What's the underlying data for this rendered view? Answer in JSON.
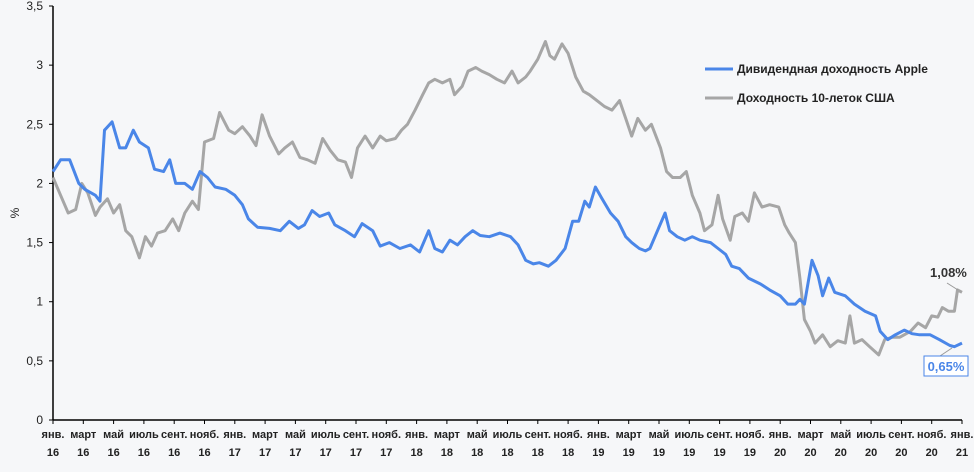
{
  "chart_data": {
    "type": "line",
    "title": "",
    "xlabel": "",
    "ylabel": "%",
    "ylim": [
      0,
      3.5
    ],
    "yticks": [
      "0",
      "0,5",
      "1",
      "1,5",
      "2",
      "2,5",
      "3",
      "3,5"
    ],
    "ytick_values": [
      0,
      0.5,
      1,
      1.5,
      2,
      2.5,
      3,
      3.5
    ],
    "x_unit": "months since Jan 2016",
    "xlim": [
      0,
      60
    ],
    "xticks": [
      {
        "m": 0,
        "l1": "янв.",
        "l2": "16"
      },
      {
        "m": 2,
        "l1": "март",
        "l2": "16"
      },
      {
        "m": 4,
        "l1": "май",
        "l2": "16"
      },
      {
        "m": 6,
        "l1": "июль",
        "l2": "16"
      },
      {
        "m": 8,
        "l1": "сент.",
        "l2": "16"
      },
      {
        "m": 10,
        "l1": "нояб.",
        "l2": "16"
      },
      {
        "m": 12,
        "l1": "янв.",
        "l2": "17"
      },
      {
        "m": 14,
        "l1": "март",
        "l2": "17"
      },
      {
        "m": 16,
        "l1": "май",
        "l2": "17"
      },
      {
        "m": 18,
        "l1": "июль",
        "l2": "17"
      },
      {
        "m": 20,
        "l1": "сент.",
        "l2": "17"
      },
      {
        "m": 22,
        "l1": "нояб.",
        "l2": "17"
      },
      {
        "m": 24,
        "l1": "янв.",
        "l2": "18"
      },
      {
        "m": 26,
        "l1": "март",
        "l2": "18"
      },
      {
        "m": 28,
        "l1": "май",
        "l2": "18"
      },
      {
        "m": 30,
        "l1": "июль",
        "l2": "18"
      },
      {
        "m": 32,
        "l1": "сент.",
        "l2": "18"
      },
      {
        "m": 34,
        "l1": "нояб.",
        "l2": "18"
      },
      {
        "m": 36,
        "l1": "янв.",
        "l2": "19"
      },
      {
        "m": 38,
        "l1": "март",
        "l2": "19"
      },
      {
        "m": 40,
        "l1": "май",
        "l2": "19"
      },
      {
        "m": 42,
        "l1": "июль",
        "l2": "19"
      },
      {
        "m": 44,
        "l1": "сент.",
        "l2": "19"
      },
      {
        "m": 46,
        "l1": "нояб.",
        "l2": "19"
      },
      {
        "m": 48,
        "l1": "янв.",
        "l2": "20"
      },
      {
        "m": 50,
        "l1": "март",
        "l2": "20"
      },
      {
        "m": 52,
        "l1": "май",
        "l2": "20"
      },
      {
        "m": 54,
        "l1": "июль",
        "l2": "20"
      },
      {
        "m": 56,
        "l1": "сент.",
        "l2": "20"
      },
      {
        "m": 58,
        "l1": "нояб.",
        "l2": "20"
      },
      {
        "m": 60,
        "l1": "янв.",
        "l2": "21"
      }
    ],
    "legend_position": "top-right",
    "grid": false,
    "series": [
      {
        "name": "Дивидендная доходность Apple",
        "color": "#4a86e8",
        "end_label": "0,65%",
        "points": [
          [
            0,
            2.1
          ],
          [
            0.5,
            2.2
          ],
          [
            1.1,
            2.2
          ],
          [
            1.7,
            2.0
          ],
          [
            2.1,
            1.95
          ],
          [
            2.8,
            1.9
          ],
          [
            3.1,
            1.85
          ],
          [
            3.4,
            2.45
          ],
          [
            3.9,
            2.52
          ],
          [
            4.4,
            2.3
          ],
          [
            4.8,
            2.3
          ],
          [
            5.3,
            2.45
          ],
          [
            5.7,
            2.35
          ],
          [
            6.3,
            2.3
          ],
          [
            6.7,
            2.12
          ],
          [
            7.3,
            2.1
          ],
          [
            7.7,
            2.2
          ],
          [
            8.1,
            2.0
          ],
          [
            8.7,
            2.0
          ],
          [
            9.2,
            1.95
          ],
          [
            9.7,
            2.1
          ],
          [
            10.2,
            2.05
          ],
          [
            10.7,
            1.97
          ],
          [
            11.4,
            1.95
          ],
          [
            12.0,
            1.9
          ],
          [
            12.5,
            1.82
          ],
          [
            12.9,
            1.7
          ],
          [
            13.5,
            1.63
          ],
          [
            14.3,
            1.62
          ],
          [
            15.0,
            1.6
          ],
          [
            15.6,
            1.68
          ],
          [
            16.2,
            1.62
          ],
          [
            16.6,
            1.65
          ],
          [
            17.1,
            1.77
          ],
          [
            17.6,
            1.72
          ],
          [
            18.2,
            1.75
          ],
          [
            18.6,
            1.65
          ],
          [
            19.3,
            1.6
          ],
          [
            19.9,
            1.55
          ],
          [
            20.4,
            1.66
          ],
          [
            21.1,
            1.6
          ],
          [
            21.6,
            1.47
          ],
          [
            22.2,
            1.5
          ],
          [
            22.9,
            1.45
          ],
          [
            23.6,
            1.48
          ],
          [
            24.2,
            1.42
          ],
          [
            24.8,
            1.6
          ],
          [
            25.2,
            1.45
          ],
          [
            25.7,
            1.42
          ],
          [
            26.2,
            1.52
          ],
          [
            26.7,
            1.48
          ],
          [
            27.2,
            1.55
          ],
          [
            27.7,
            1.6
          ],
          [
            28.2,
            1.56
          ],
          [
            28.8,
            1.55
          ],
          [
            29.5,
            1.58
          ],
          [
            30.2,
            1.55
          ],
          [
            30.7,
            1.48
          ],
          [
            31.2,
            1.35
          ],
          [
            31.7,
            1.32
          ],
          [
            32.1,
            1.33
          ],
          [
            32.7,
            1.3
          ],
          [
            33.2,
            1.35
          ],
          [
            33.8,
            1.45
          ],
          [
            34.3,
            1.68
          ],
          [
            34.7,
            1.68
          ],
          [
            35.1,
            1.85
          ],
          [
            35.4,
            1.8
          ],
          [
            35.8,
            1.97
          ],
          [
            36.2,
            1.88
          ],
          [
            36.8,
            1.75
          ],
          [
            37.3,
            1.68
          ],
          [
            37.8,
            1.55
          ],
          [
            38.2,
            1.5
          ],
          [
            38.7,
            1.45
          ],
          [
            39.1,
            1.43
          ],
          [
            39.4,
            1.45
          ],
          [
            39.9,
            1.6
          ],
          [
            40.4,
            1.75
          ],
          [
            40.7,
            1.6
          ],
          [
            41.2,
            1.55
          ],
          [
            41.7,
            1.52
          ],
          [
            42.2,
            1.55
          ],
          [
            42.7,
            1.52
          ],
          [
            43.4,
            1.5
          ],
          [
            43.9,
            1.45
          ],
          [
            44.4,
            1.4
          ],
          [
            44.8,
            1.3
          ],
          [
            45.3,
            1.28
          ],
          [
            45.9,
            1.2
          ],
          [
            46.7,
            1.15
          ],
          [
            47.3,
            1.1
          ],
          [
            48.0,
            1.05
          ],
          [
            48.5,
            0.98
          ],
          [
            49.0,
            0.98
          ],
          [
            49.3,
            1.02
          ],
          [
            49.6,
            0.98
          ],
          [
            50.1,
            1.35
          ],
          [
            50.5,
            1.22
          ],
          [
            50.8,
            1.05
          ],
          [
            51.2,
            1.2
          ],
          [
            51.6,
            1.08
          ],
          [
            52.3,
            1.05
          ],
          [
            52.9,
            0.98
          ],
          [
            53.6,
            0.92
          ],
          [
            54.3,
            0.88
          ],
          [
            54.6,
            0.75
          ],
          [
            55.1,
            0.68
          ],
          [
            55.6,
            0.72
          ],
          [
            56.2,
            0.76
          ],
          [
            56.7,
            0.73
          ],
          [
            57.2,
            0.72
          ],
          [
            57.9,
            0.72
          ],
          [
            58.5,
            0.68
          ],
          [
            59.2,
            0.63
          ],
          [
            59.5,
            0.62
          ],
          [
            60,
            0.65
          ]
        ]
      },
      {
        "name": "Доходность 10-леток США",
        "color": "#a6a6a6",
        "end_label": "1,08%",
        "points": [
          [
            0,
            2.05
          ],
          [
            0.5,
            1.9
          ],
          [
            1.0,
            1.75
          ],
          [
            1.5,
            1.78
          ],
          [
            1.9,
            2.0
          ],
          [
            2.3,
            1.92
          ],
          [
            2.8,
            1.73
          ],
          [
            3.1,
            1.8
          ],
          [
            3.6,
            1.87
          ],
          [
            4.0,
            1.75
          ],
          [
            4.4,
            1.82
          ],
          [
            4.8,
            1.6
          ],
          [
            5.2,
            1.55
          ],
          [
            5.7,
            1.37
          ],
          [
            6.1,
            1.55
          ],
          [
            6.5,
            1.47
          ],
          [
            6.9,
            1.58
          ],
          [
            7.4,
            1.6
          ],
          [
            7.9,
            1.7
          ],
          [
            8.3,
            1.6
          ],
          [
            8.7,
            1.75
          ],
          [
            9.2,
            1.85
          ],
          [
            9.6,
            1.78
          ],
          [
            10.0,
            2.35
          ],
          [
            10.6,
            2.38
          ],
          [
            11.0,
            2.6
          ],
          [
            11.6,
            2.45
          ],
          [
            12.0,
            2.42
          ],
          [
            12.5,
            2.48
          ],
          [
            13.0,
            2.4
          ],
          [
            13.4,
            2.32
          ],
          [
            13.8,
            2.58
          ],
          [
            14.3,
            2.4
          ],
          [
            14.9,
            2.25
          ],
          [
            15.3,
            2.3
          ],
          [
            15.8,
            2.35
          ],
          [
            16.3,
            2.22
          ],
          [
            16.8,
            2.2
          ],
          [
            17.3,
            2.17
          ],
          [
            17.8,
            2.38
          ],
          [
            18.3,
            2.28
          ],
          [
            18.8,
            2.2
          ],
          [
            19.3,
            2.18
          ],
          [
            19.7,
            2.05
          ],
          [
            20.1,
            2.3
          ],
          [
            20.6,
            2.4
          ],
          [
            21.1,
            2.3
          ],
          [
            21.6,
            2.4
          ],
          [
            22.0,
            2.36
          ],
          [
            22.6,
            2.38
          ],
          [
            23.0,
            2.45
          ],
          [
            23.4,
            2.5
          ],
          [
            23.9,
            2.62
          ],
          [
            24.4,
            2.75
          ],
          [
            24.8,
            2.85
          ],
          [
            25.2,
            2.88
          ],
          [
            25.7,
            2.85
          ],
          [
            26.2,
            2.88
          ],
          [
            26.5,
            2.75
          ],
          [
            27.0,
            2.82
          ],
          [
            27.4,
            2.95
          ],
          [
            27.9,
            2.98
          ],
          [
            28.3,
            2.95
          ],
          [
            28.8,
            2.92
          ],
          [
            29.3,
            2.88
          ],
          [
            29.8,
            2.85
          ],
          [
            30.3,
            2.95
          ],
          [
            30.7,
            2.85
          ],
          [
            31.2,
            2.9
          ],
          [
            31.5,
            2.95
          ],
          [
            32.0,
            3.05
          ],
          [
            32.5,
            3.2
          ],
          [
            32.8,
            3.08
          ],
          [
            33.1,
            3.05
          ],
          [
            33.6,
            3.18
          ],
          [
            34.0,
            3.1
          ],
          [
            34.5,
            2.9
          ],
          [
            35.0,
            2.78
          ],
          [
            35.4,
            2.75
          ],
          [
            35.9,
            2.7
          ],
          [
            36.4,
            2.65
          ],
          [
            36.9,
            2.62
          ],
          [
            37.4,
            2.7
          ],
          [
            37.8,
            2.55
          ],
          [
            38.2,
            2.4
          ],
          [
            38.6,
            2.55
          ],
          [
            39.1,
            2.45
          ],
          [
            39.5,
            2.5
          ],
          [
            40.1,
            2.3
          ],
          [
            40.5,
            2.1
          ],
          [
            40.9,
            2.05
          ],
          [
            41.4,
            2.05
          ],
          [
            41.8,
            2.1
          ],
          [
            42.2,
            1.9
          ],
          [
            42.7,
            1.75
          ],
          [
            43.0,
            1.6
          ],
          [
            43.5,
            1.65
          ],
          [
            43.9,
            1.9
          ],
          [
            44.2,
            1.7
          ],
          [
            44.7,
            1.52
          ],
          [
            45.0,
            1.72
          ],
          [
            45.5,
            1.75
          ],
          [
            45.9,
            1.68
          ],
          [
            46.3,
            1.92
          ],
          [
            46.8,
            1.8
          ],
          [
            47.3,
            1.82
          ],
          [
            47.9,
            1.8
          ],
          [
            48.3,
            1.65
          ],
          [
            48.6,
            1.58
          ],
          [
            49.0,
            1.5
          ],
          [
            49.3,
            1.2
          ],
          [
            49.6,
            0.85
          ],
          [
            50.0,
            0.75
          ],
          [
            50.3,
            0.65
          ],
          [
            50.8,
            0.72
          ],
          [
            51.3,
            0.62
          ],
          [
            51.8,
            0.67
          ],
          [
            52.3,
            0.65
          ],
          [
            52.6,
            0.88
          ],
          [
            52.9,
            0.65
          ],
          [
            53.4,
            0.68
          ],
          [
            53.9,
            0.62
          ],
          [
            54.5,
            0.55
          ],
          [
            54.9,
            0.68
          ],
          [
            55.4,
            0.7
          ],
          [
            55.9,
            0.7
          ],
          [
            56.6,
            0.75
          ],
          [
            57.1,
            0.82
          ],
          [
            57.6,
            0.78
          ],
          [
            58.0,
            0.88
          ],
          [
            58.4,
            0.87
          ],
          [
            58.7,
            0.95
          ],
          [
            59.1,
            0.92
          ],
          [
            59.5,
            0.92
          ],
          [
            59.7,
            1.1
          ],
          [
            60,
            1.08
          ]
        ]
      }
    ]
  }
}
